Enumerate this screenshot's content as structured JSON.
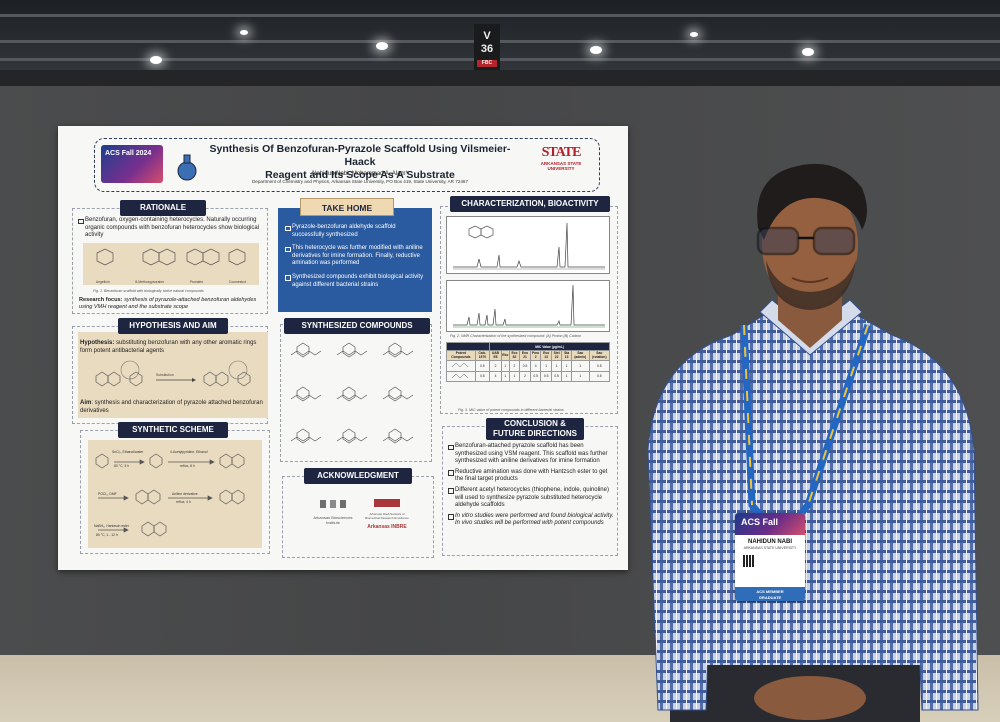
{
  "venue": {
    "pillar_sign_top": "V",
    "pillar_sign_num": "36",
    "pillar_sign_bottom": "FBC"
  },
  "poster": {
    "title_line1": "Synthesis Of Benzofuran-Pyrazole Scaffold Using Vilsmeier-Haack",
    "title_line2": "Reagent and Its Scope As A Substrate",
    "authors": "Nahidun Nabi, Mohammad A. Alam*",
    "department": "Department of Chemistry and Physics, Arkansas State University, PO Box 419, State University, AR 72467",
    "conference_logo": "ACS Fall 2024",
    "university_logo_word": "STATE",
    "university_logo_sub": "ARKANSAS STATE UNIVERSITY",
    "colors": {
      "navy": "#1d2540",
      "blue_panel": "#2a5aa0",
      "beige": "#e9dbc0",
      "tan": "#efd9b3"
    },
    "rationale": {
      "title": "RATIONALE",
      "bullet": "Benzofuran, oxygen-containing heterocycles. Naturally occurring organic compounds with benzofuran heterocycles show biological activity",
      "figure_labels": [
        "Angelicin",
        "8-Methoxypsoralen",
        "Psoralen",
        "Coumestrol"
      ],
      "caption": "Fig. 1. Benzofuran scaffold with biologically active natural compounds",
      "research_focus_label": "Research focus:",
      "research_focus_text": "synthesis of pyrazole-attached benzofuran aldehydes using VMH reagent and the substrate scope"
    },
    "take_home": {
      "title": "TAKE HOME",
      "bullets": [
        "Pyrazole-benzofuran aldehyde scaffold successfully synthesized",
        "This heterocycle was further modified with aniline derivatives for imine formation. Finally, reductive amination was performed",
        "Synthesized compounds exhibit biological activity against different bacterial strains"
      ]
    },
    "characterization": {
      "title": "CHARACTERIZATION, BIOACTIVITY",
      "caption_nmr": "Fig. 2. NMR Characterization of the synthesized compound: (A) Proton (B) Carbon",
      "table_title": "MIC Value (μg/mL)",
      "table_headers": [
        "Potent Compounds",
        "Calc. 1970",
        "UAB E8",
        "Eko",
        "Eco 82",
        "Eno 21",
        "Pmu 2",
        "Eso 13",
        "Stel 22",
        "Sta 13",
        "Sao (admin)",
        "Sao (rotation)"
      ],
      "table_rows": [
        [
          "0.5",
          "2",
          "1",
          "2",
          "0.5",
          "4",
          "1",
          "1",
          "1",
          "1",
          "0.5"
        ],
        [
          "0.5",
          "4",
          "1",
          "1",
          "2",
          "0.5",
          "0.5",
          "0.5",
          "1",
          "1",
          "0.5"
        ]
      ],
      "caption_mic": "Fig. 3. MIC value of potent compounds in different bacterial strains"
    },
    "hypothesis": {
      "title": "HYPOTHESIS AND AIM",
      "hypothesis_label": "Hypothesis:",
      "hypothesis_text": "substituting benzofuran with any other aromatic rings form potent antibacterial agents",
      "arrow_label": "Substitution",
      "aim_label": "Aim",
      "aim_text": ": synthesis and characterization of pyrazole attached benzofuran derivatives"
    },
    "synthesized_compounds": {
      "title": "SYNTHESIZED COMPOUNDS"
    },
    "synthetic_scheme": {
      "title": "SYNTHETIC SCHEME",
      "step1_reagents": "SnCl₂, Ethanol/water",
      "step1_conditions": "80 °C, 3 h",
      "step2_reagents": "4-Acetylpyridine, Ethanol",
      "step2_conditions": "reflux, 8 h",
      "step3_reagents": "POCl₃, DMF",
      "step4_reagents": "Aniline derivative",
      "step4_conditions": "reflux, 4 h",
      "step5_reagents": "NaBH₄, Hantzsch ester",
      "step5_conditions": "80 °C, 1 - 12 h"
    },
    "acknowledgment": {
      "title": "ACKNOWLEDGMENT",
      "logos": [
        "Arkansas Biosciences Institute",
        "Arkansas INBRE",
        "Arkansas IDeA Network of Biomedical Research Excellence"
      ]
    },
    "conclusion": {
      "title_line1": "CONCLUSION &",
      "title_line2": "FUTURE DIRECTIONS",
      "bullets": [
        "Benzofuran-attached pyrazole scaffold has been synthesized using VSM reagent. This scaffold was further synthesized with aniline derivatives for imine formation",
        "Reductive amination was done with Hantzsch ester to get the final target products",
        "Different acetyl heterocycles (thiophene, indole, quinoline) will used to synthesize pyrazole substituted heterocycle aldehyde scaffolds",
        "In vitro studies were performed and found biological activity. In vivo studies will be performed with potent compounds"
      ]
    }
  },
  "badge": {
    "event": "ACS Fall",
    "name": "NAHIDUN NABI",
    "organization": "ARKANSAS STATE UNIVERSITY",
    "member_line1": "ACS MEMBER",
    "member_line2": "GRADUATE"
  }
}
